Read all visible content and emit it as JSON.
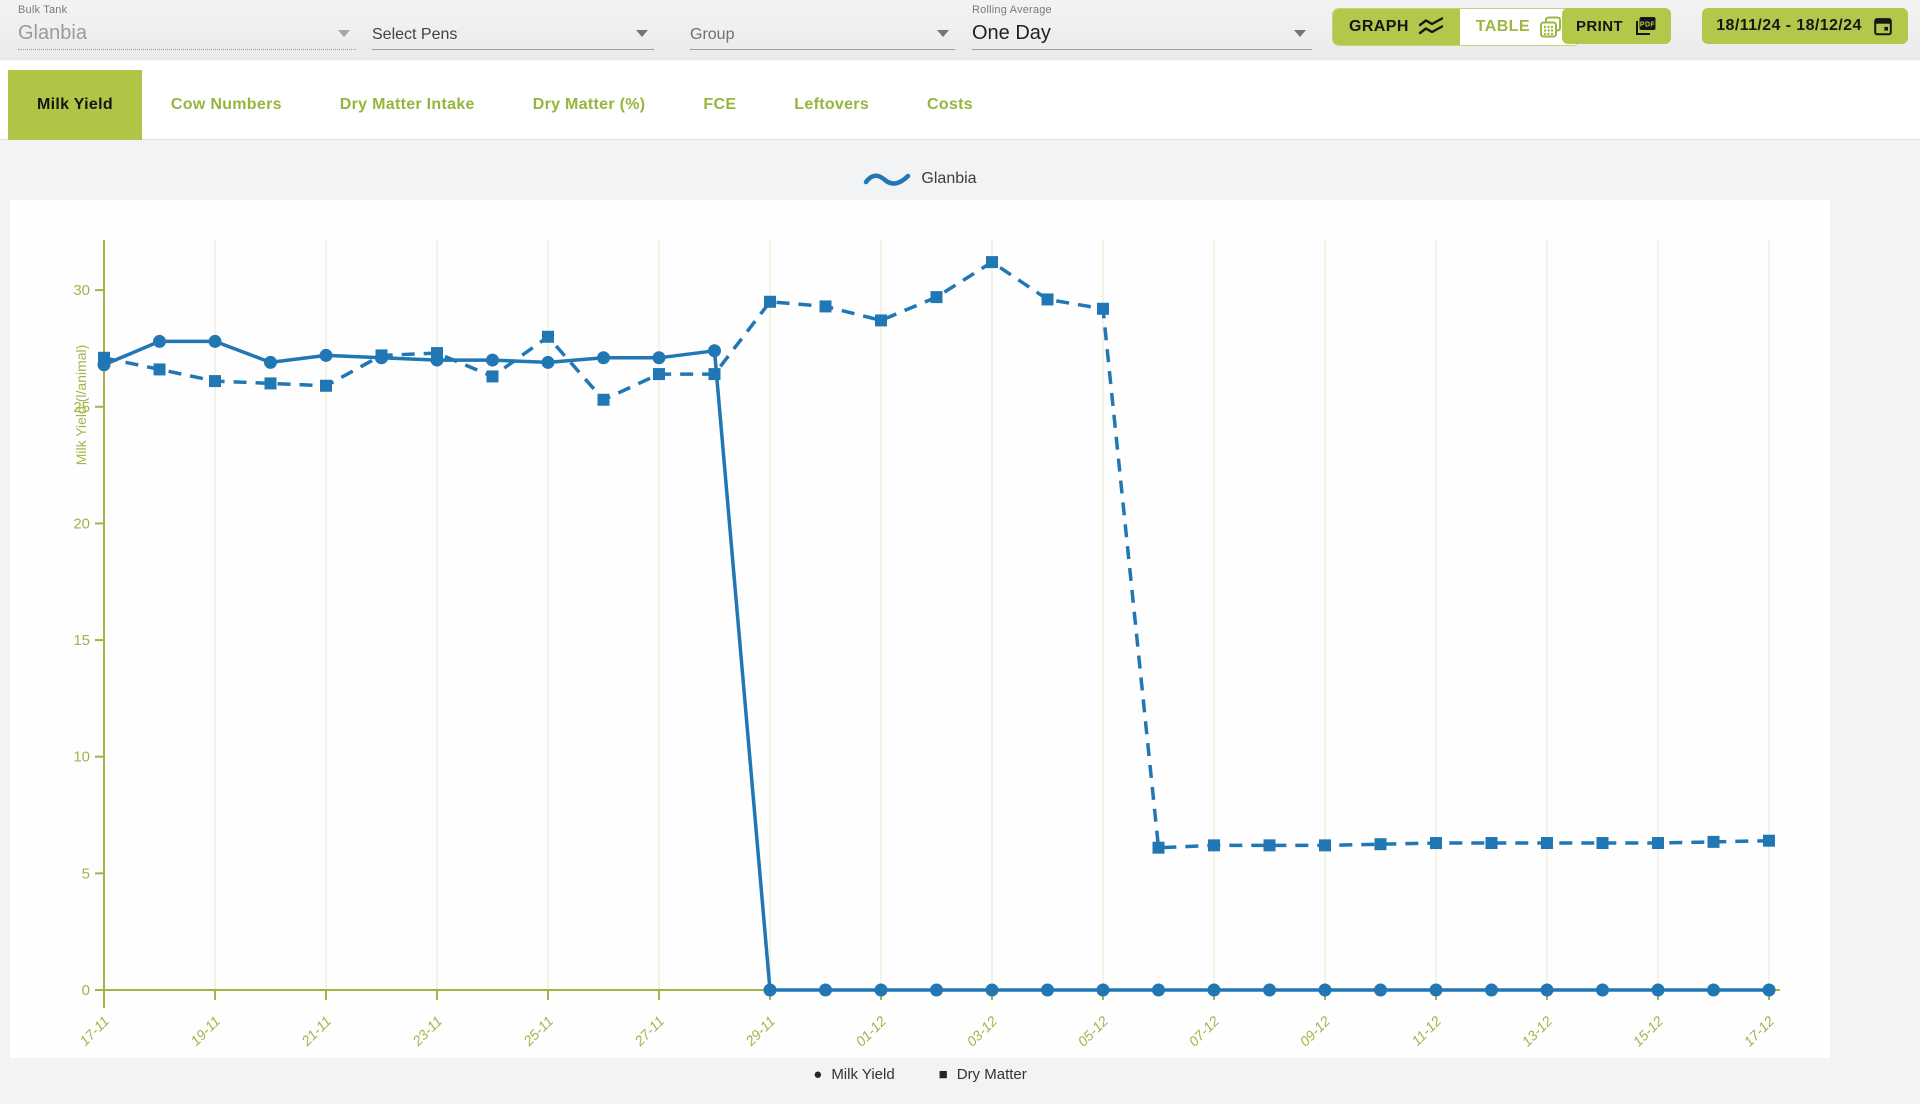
{
  "toolbar": {
    "bulk_tank": {
      "label": "Bulk Tank",
      "value": "Glanbia"
    },
    "select_pens": {
      "placeholder": "Select Pens"
    },
    "group": {
      "placeholder": "Group"
    },
    "rolling_average": {
      "label": "Rolling Average",
      "value": "One Day"
    },
    "graph_button": "GRAPH",
    "table_button": "TABLE",
    "print_button": "PRINT",
    "date_range": "18/11/24 - 18/12/24"
  },
  "tabs": [
    {
      "label": "Milk Yield",
      "active": true
    },
    {
      "label": "Cow Numbers",
      "active": false
    },
    {
      "label": "Dry Matter Intake",
      "active": false
    },
    {
      "label": "Dry Matter (%)",
      "active": false
    },
    {
      "label": "FCE",
      "active": false
    },
    {
      "label": "Leftovers",
      "active": false
    },
    {
      "label": "Costs",
      "active": false
    }
  ],
  "legend_top": {
    "label": "Glanbia"
  },
  "chart_data": {
    "type": "line",
    "title": "",
    "xlabel": "",
    "ylabel": "Milk Yield (l/animal)",
    "ylim": [
      0,
      32
    ],
    "yticks": [
      0,
      5,
      10,
      15,
      20,
      25,
      30
    ],
    "grid": "vertical-every-2-days",
    "x": [
      "17-11",
      "18-11",
      "19-11",
      "20-11",
      "21-11",
      "22-11",
      "23-11",
      "24-11",
      "25-11",
      "26-11",
      "27-11",
      "28-11",
      "29-11",
      "30-11",
      "01-12",
      "02-12",
      "03-12",
      "04-12",
      "05-12",
      "06-12",
      "07-12",
      "08-12",
      "09-12",
      "10-12",
      "11-12",
      "12-12",
      "13-12",
      "14-12",
      "15-12",
      "16-12",
      "17-12"
    ],
    "xtick_every": 2,
    "series": [
      {
        "name": "Milk Yield",
        "marker": "circle",
        "line": "solid",
        "color": "#2077b4",
        "values": [
          26.8,
          27.8,
          27.8,
          26.9,
          27.2,
          27.1,
          27.0,
          27.0,
          26.9,
          27.1,
          27.1,
          27.4,
          0,
          0,
          0,
          0,
          0,
          0,
          0,
          0,
          0,
          0,
          0,
          0,
          0,
          0,
          0,
          0,
          0,
          0,
          0
        ]
      },
      {
        "name": "Dry Matter",
        "marker": "square",
        "line": "dashed",
        "color": "#2077b4",
        "values": [
          27.1,
          26.6,
          26.1,
          26.0,
          25.9,
          27.2,
          27.3,
          26.3,
          28.0,
          25.3,
          26.4,
          26.4,
          29.5,
          29.3,
          28.7,
          29.7,
          31.2,
          29.6,
          29.2,
          6.1,
          6.2,
          6.2,
          6.2,
          6.25,
          6.3,
          6.3,
          6.3,
          6.3,
          6.3,
          6.35,
          6.4
        ]
      }
    ]
  },
  "legend_bottom": [
    {
      "marker": "circle",
      "label": "Milk Yield"
    },
    {
      "marker": "square",
      "label": "Dry Matter"
    }
  ],
  "colors": {
    "accent_green": "#b3c84b",
    "tab_active_green": "#aec545",
    "green_text": "#94b63c",
    "axis_olive": "#a4b449",
    "gridline": "#f1eedb",
    "series_blue": "#2077b4",
    "dark_text": "#212121"
  }
}
